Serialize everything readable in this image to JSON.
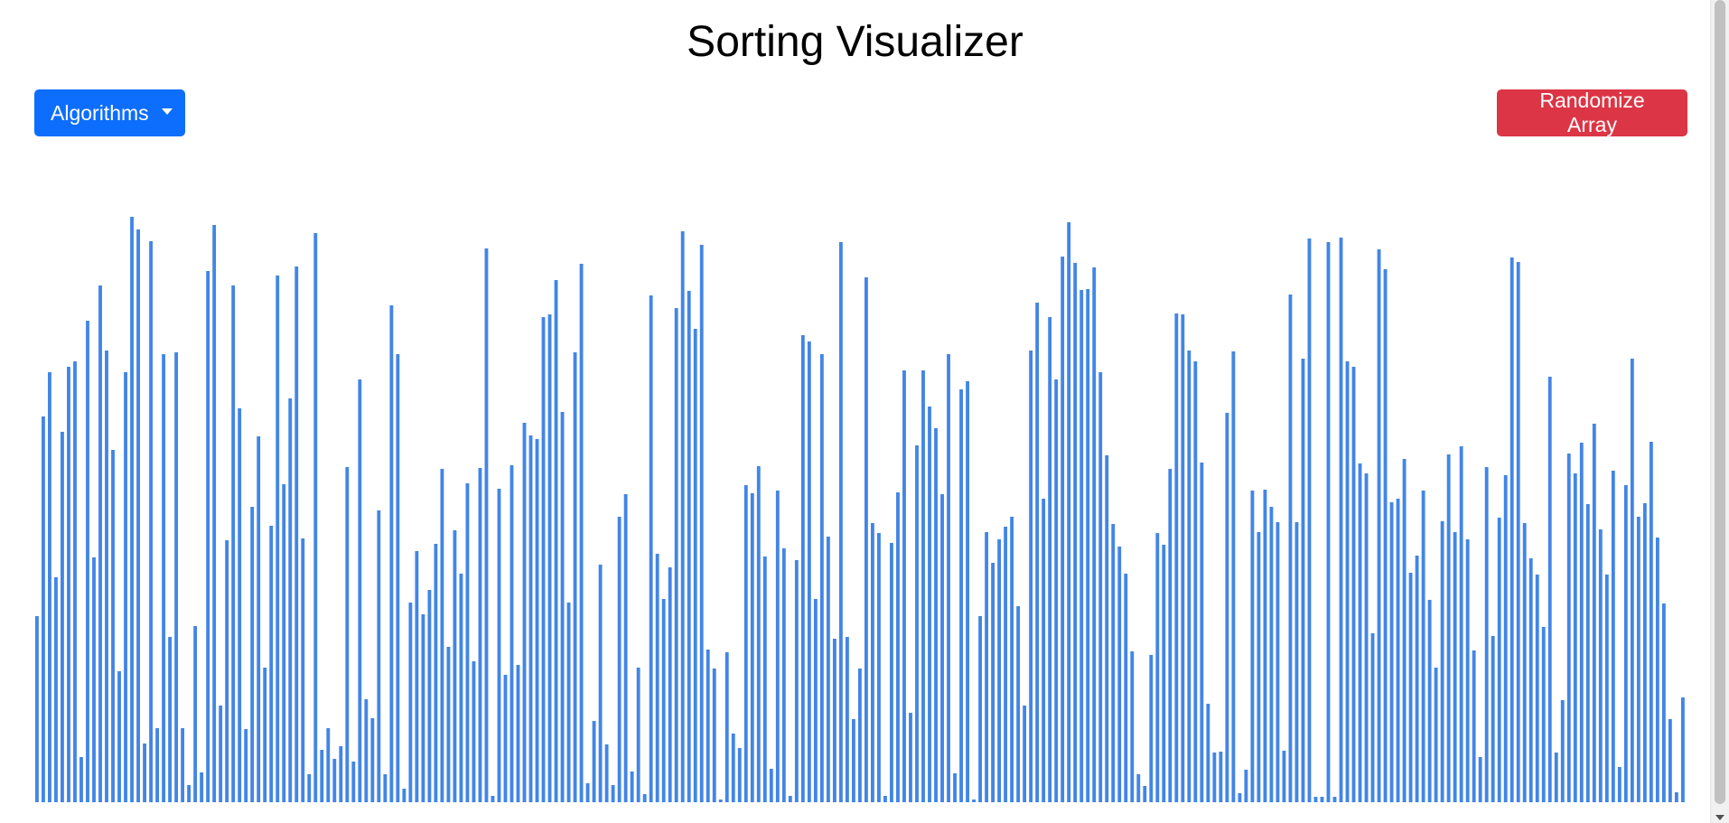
{
  "header": {
    "title": "Sorting Visualizer"
  },
  "toolbar": {
    "algorithms_label": "Algorithms",
    "randomize_label": "Randomize Array"
  },
  "colors": {
    "bar": "#4285e6",
    "algorithms_button": "#0d6efd",
    "randomize_button": "#dc3545"
  },
  "icons": {
    "dropdown": "caret-down-icon"
  },
  "chart_data": {
    "type": "bar",
    "values": [
      206,
      427,
      476,
      249,
      410,
      482,
      488,
      50,
      533,
      271,
      572,
      500,
      390,
      145,
      476,
      648,
      634,
      65,
      621,
      82,
      496,
      183,
      498,
      82,
      19,
      195,
      33,
      588,
      639,
      107,
      290,
      572,
      436,
      81,
      327,
      405,
      149,
      306,
      583,
      352,
      447,
      593,
      292,
      31,
      630,
      58,
      82,
      48,
      62,
      371,
      45,
      468,
      114,
      93,
      323,
      31,
      550,
      496,
      15,
      221,
      278,
      208,
      235,
      286,
      369,
      172,
      301,
      253,
      353,
      156,
      370,
      613,
      7,
      347,
      141,
      373,
      152,
      420,
      406,
      402,
      537,
      540,
      578,
      432,
      221,
      498,
      596,
      21,
      90,
      263,
      64,
      19,
      316,
      341,
      34,
      149,
      9,
      561,
      275,
      225,
      260,
      547,
      632,
      566,
      524,
      617,
      169,
      148,
      3,
      166,
      76,
      60,
      351,
      342,
      372,
      272,
      37,
      345,
      281,
      7,
      268,
      517,
      510,
      225,
      496,
      294,
      181,
      620,
      183,
      92,
      148,
      581,
      309,
      298,
      7,
      287,
      343,
      478,
      99,
      395,
      478,
      438,
      414,
      341,
      496,
      32,
      457,
      466,
      3,
      206,
      299,
      265,
      291,
      305,
      316,
      217,
      107,
      500,
      553,
      336,
      537,
      468,
      604,
      642,
      597,
      567,
      568,
      592,
      476,
      384,
      308,
      283,
      253,
      167,
      31,
      18,
      163,
      298,
      285,
      369,
      541,
      540,
      500,
      488,
      376,
      109,
      55,
      56,
      431,
      499,
      10,
      36,
      345,
      299,
      346,
      327,
      310,
      57,
      562,
      310,
      491,
      624,
      6,
      6,
      620,
      6,
      625,
      488,
      482,
      375,
      364,
      187,
      612,
      590,
      332,
      336,
      380,
      254,
      273,
      345,
      224,
      149,
      311,
      385,
      299,
      394,
      291,
      168,
      50,
      371,
      184,
      315,
      362,
      603,
      598,
      309,
      270,
      252,
      194,
      471,
      55,
      113,
      386,
      364,
      398,
      330,
      419,
      302,
      252,
      367,
      39,
      351,
      491,
      316,
      331,
      399,
      293,
      220,
      92,
      11,
      116
    ],
    "ylim": [
      0,
      640
    ],
    "grid": false,
    "legend": "none"
  }
}
